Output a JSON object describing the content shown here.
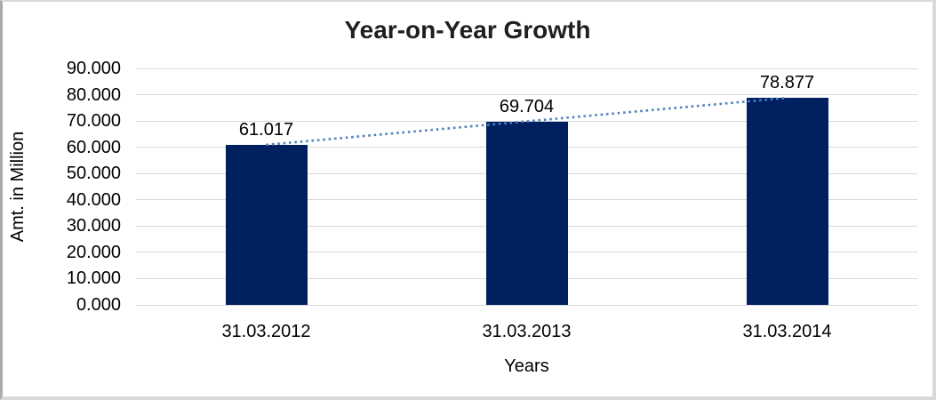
{
  "window": {
    "background_color": "#ffffff",
    "frame_border_color": "#d9d9d9"
  },
  "chart_data": {
    "type": "bar",
    "title": "Year-on-Year Growth",
    "categories": [
      "31.03.2012",
      "31.03.2013",
      "31.03.2014"
    ],
    "values": [
      61.017,
      69.704,
      78.877
    ],
    "value_labels": [
      "61.017",
      "69.704",
      "78.877"
    ],
    "xlabel": "Years",
    "ylabel": "Amt. in Million",
    "ylim": [
      0,
      90
    ],
    "ytick_step": 10,
    "ytick_labels": [
      "90.000",
      "80.000",
      "70.000",
      "60.000",
      "50.000",
      "40.000",
      "30.000",
      "20.000",
      "10.000",
      "0.000"
    ],
    "grid": true,
    "legend_position": "none",
    "bar_color": "#002060",
    "gridline_color": "#d9d9d9",
    "label_color": "#000000",
    "trendline": {
      "fit": "linear",
      "style": "dotted",
      "color": "#4f81bd"
    }
  }
}
